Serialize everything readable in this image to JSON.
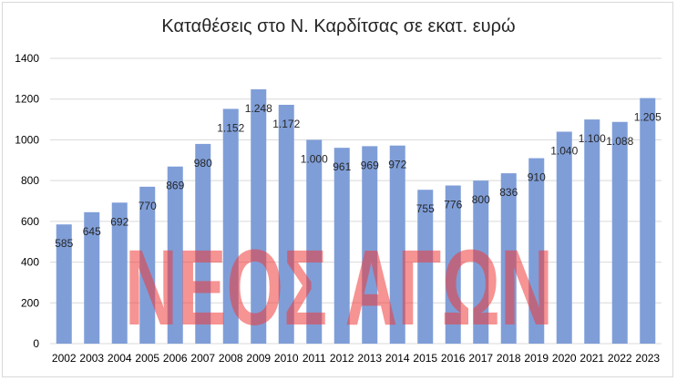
{
  "chart_data": {
    "type": "bar",
    "title": "Καταθέσεις στο Ν. Καρδίτσας σε εκατ. ευρώ",
    "categories": [
      "2002",
      "2003",
      "2004",
      "2005",
      "2006",
      "2007",
      "2008",
      "2009",
      "2010",
      "2011",
      "2012",
      "2013",
      "2014",
      "2015",
      "2016",
      "2017",
      "2018",
      "2019",
      "2020",
      "2021",
      "2022",
      "2023"
    ],
    "values": [
      585,
      645,
      692,
      770,
      869,
      980,
      1152,
      1248,
      1172,
      1000,
      961,
      969,
      972,
      755,
      776,
      800,
      836,
      910,
      1040,
      1100,
      1088,
      1205
    ],
    "data_labels": [
      "585",
      "645",
      "692",
      "770",
      "869",
      "980",
      "1.152",
      "1.248",
      "1.172",
      "1.000",
      "961",
      "969",
      "972",
      "755",
      "776",
      "800",
      "836",
      "910",
      "1.040",
      "1.100",
      "1.088",
      "1.205"
    ],
    "ylim": [
      0,
      1400
    ],
    "yticks": [
      0,
      200,
      400,
      600,
      800,
      1000,
      1200,
      1400
    ],
    "grid": true,
    "bar_color": "#7f9ed8",
    "xlabel": "",
    "ylabel": ""
  },
  "watermark": {
    "text": "ΝΕΟΣ ΑΓΩΝ",
    "color": "#ee3a3a"
  }
}
